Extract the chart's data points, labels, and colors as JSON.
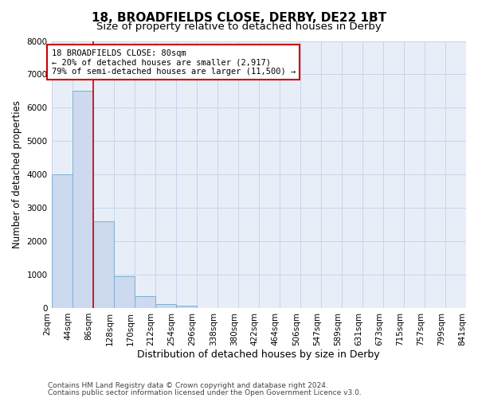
{
  "title1": "18, BROADFIELDS CLOSE, DERBY, DE22 1BT",
  "title2": "Size of property relative to detached houses in Derby",
  "xlabel": "Distribution of detached houses by size in Derby",
  "ylabel": "Number of detached properties",
  "annotation_title": "18 BROADFIELDS CLOSE: 80sqm",
  "annotation_line2": "← 20% of detached houses are smaller (2,917)",
  "annotation_line3": "79% of semi-detached houses are larger (11,500) →",
  "footer1": "Contains HM Land Registry data © Crown copyright and database right 2024.",
  "footer2": "Contains public sector information licensed under the Open Government Licence v3.0.",
  "bin_labels": [
    "2sqm",
    "44sqm",
    "86sqm",
    "128sqm",
    "170sqm",
    "212sqm",
    "254sqm",
    "296sqm",
    "338sqm",
    "380sqm",
    "422sqm",
    "464sqm",
    "506sqm",
    "547sqm",
    "589sqm",
    "631sqm",
    "673sqm",
    "715sqm",
    "757sqm",
    "799sqm",
    "841sqm"
  ],
  "bar_values": [
    4000,
    6500,
    2600,
    950,
    350,
    120,
    80,
    0,
    0,
    0,
    0,
    0,
    0,
    0,
    0,
    0,
    0,
    0,
    0,
    0
  ],
  "bar_color": "#ccd9ee",
  "bar_edge_color": "#7eafd4",
  "ylim": [
    0,
    8000
  ],
  "yticks": [
    0,
    1000,
    2000,
    3000,
    4000,
    5000,
    6000,
    7000,
    8000
  ],
  "grid_color": "#c8d4e8",
  "bg_color": "#e8eef8",
  "annotation_box_color": "#ffffff",
  "annotation_box_edge": "#cc0000",
  "red_line_x": 2,
  "title1_fontsize": 11,
  "title2_fontsize": 9.5,
  "axis_label_fontsize": 8.5,
  "tick_fontsize": 7.5,
  "annotation_fontsize": 7.5,
  "footer_fontsize": 6.5
}
